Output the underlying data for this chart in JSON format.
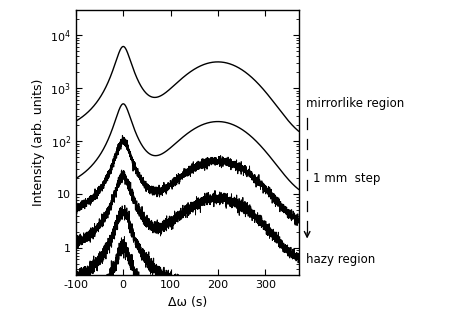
{
  "xlabel": "Δω (s)",
  "ylabel": "Intensity (arb. units)",
  "xlim": [
    -100,
    370
  ],
  "ylim_log": [
    0.3,
    30000
  ],
  "yticks": [
    1,
    10,
    100,
    1000,
    10000
  ],
  "ytick_labels": [
    "1",
    "10",
    "10²",
    "10³",
    "10⁴"
  ],
  "xticks": [
    -100,
    0,
    100,
    200,
    300
  ],
  "n_curves": 6,
  "offsets": [
    1.0,
    4.5,
    22.0,
    100.0,
    500.0,
    6000.0
  ],
  "background_color": "#ffffff",
  "line_color": "#000000",
  "annotation_mirrorlike": "mirrorlike region",
  "annotation_hazy": "hazy region",
  "annotation_step": "1 mm  step",
  "fontsize_label": 9,
  "fontsize_tick": 8,
  "fontsize_annot": 8.5
}
